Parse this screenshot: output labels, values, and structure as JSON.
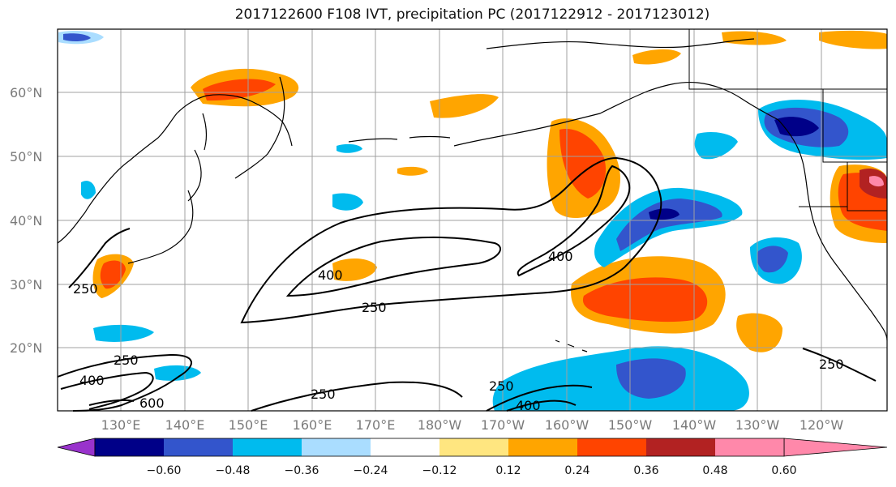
{
  "title": "2017122600 F108 IVT, precipitation PC (2017122912 - 2017123012)",
  "lat_ticks": [
    "60°N",
    "50°N",
    "40°N",
    "30°N",
    "20°N"
  ],
  "lon_ticks": [
    "130°E",
    "140°E",
    "150°E",
    "160°E",
    "170°E",
    "180°W",
    "170°W",
    "160°W",
    "150°W",
    "140°W",
    "130°W",
    "120°W"
  ],
  "colorbar": {
    "colors": [
      "#9933cc",
      "#000088",
      "#3355cc",
      "#00bbee",
      "#aaddff",
      "#ffffff",
      "#ffe680",
      "#ffa500",
      "#ff4400",
      "#b22222",
      "#ff88aa"
    ],
    "tick_labels": [
      "−0.60",
      "−0.48",
      "−0.36",
      "−0.24",
      "−0.12",
      "0.12",
      "0.24",
      "0.36",
      "0.48",
      "0.60"
    ]
  },
  "contour_labels": [
    "250",
    "400",
    "250",
    "400",
    "250",
    "400",
    "600",
    "250",
    "250",
    "400",
    "250"
  ]
}
